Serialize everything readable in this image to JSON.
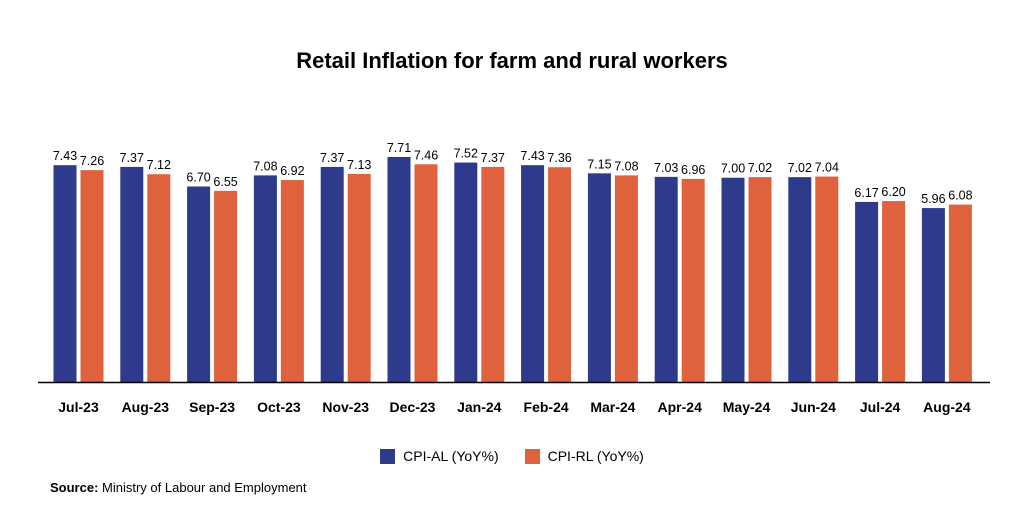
{
  "chart_data": {
    "type": "bar",
    "title": "Retail Inflation for farm and rural workers",
    "categories": [
      "Jul-23",
      "Aug-23",
      "Sep-23",
      "Oct-23",
      "Nov-23",
      "Dec-23",
      "Jan-24",
      "Feb-24",
      "Mar-24",
      "Apr-24",
      "May-24",
      "Jun-24",
      "Jul-24",
      "Aug-24"
    ],
    "series": [
      {
        "name": "CPI-AL (YoY%)",
        "color": "#2e3a8c",
        "values": [
          7.43,
          7.37,
          6.7,
          7.08,
          7.37,
          7.71,
          7.52,
          7.43,
          7.15,
          7.03,
          7.0,
          7.02,
          6.17,
          5.96
        ],
        "labels": [
          "7.43",
          "7.37",
          "6.70",
          "7.08",
          "7.37",
          "7.71",
          "7.52",
          "7.43",
          "7.15",
          "7.03",
          "7.00",
          "7.02",
          "6.17",
          "5.96"
        ]
      },
      {
        "name": "CPI-RL (YoY%)",
        "color": "#e0623d",
        "values": [
          7.26,
          7.12,
          6.55,
          6.92,
          7.13,
          7.46,
          7.37,
          7.36,
          7.08,
          6.96,
          7.02,
          7.04,
          6.2,
          6.08
        ],
        "labels": [
          "7.26",
          "7.12",
          "6.55",
          "6.92",
          "7.13",
          "7.46",
          "7.37",
          "7.36",
          "7.08",
          "6.96",
          "7.02",
          "7.04",
          "6.20",
          "6.08"
        ]
      }
    ],
    "xlabel": "",
    "ylabel": "",
    "legend": "bottom",
    "grid": false
  },
  "source": {
    "label": "Source:",
    "text": "Ministry of Labour and Employment"
  }
}
